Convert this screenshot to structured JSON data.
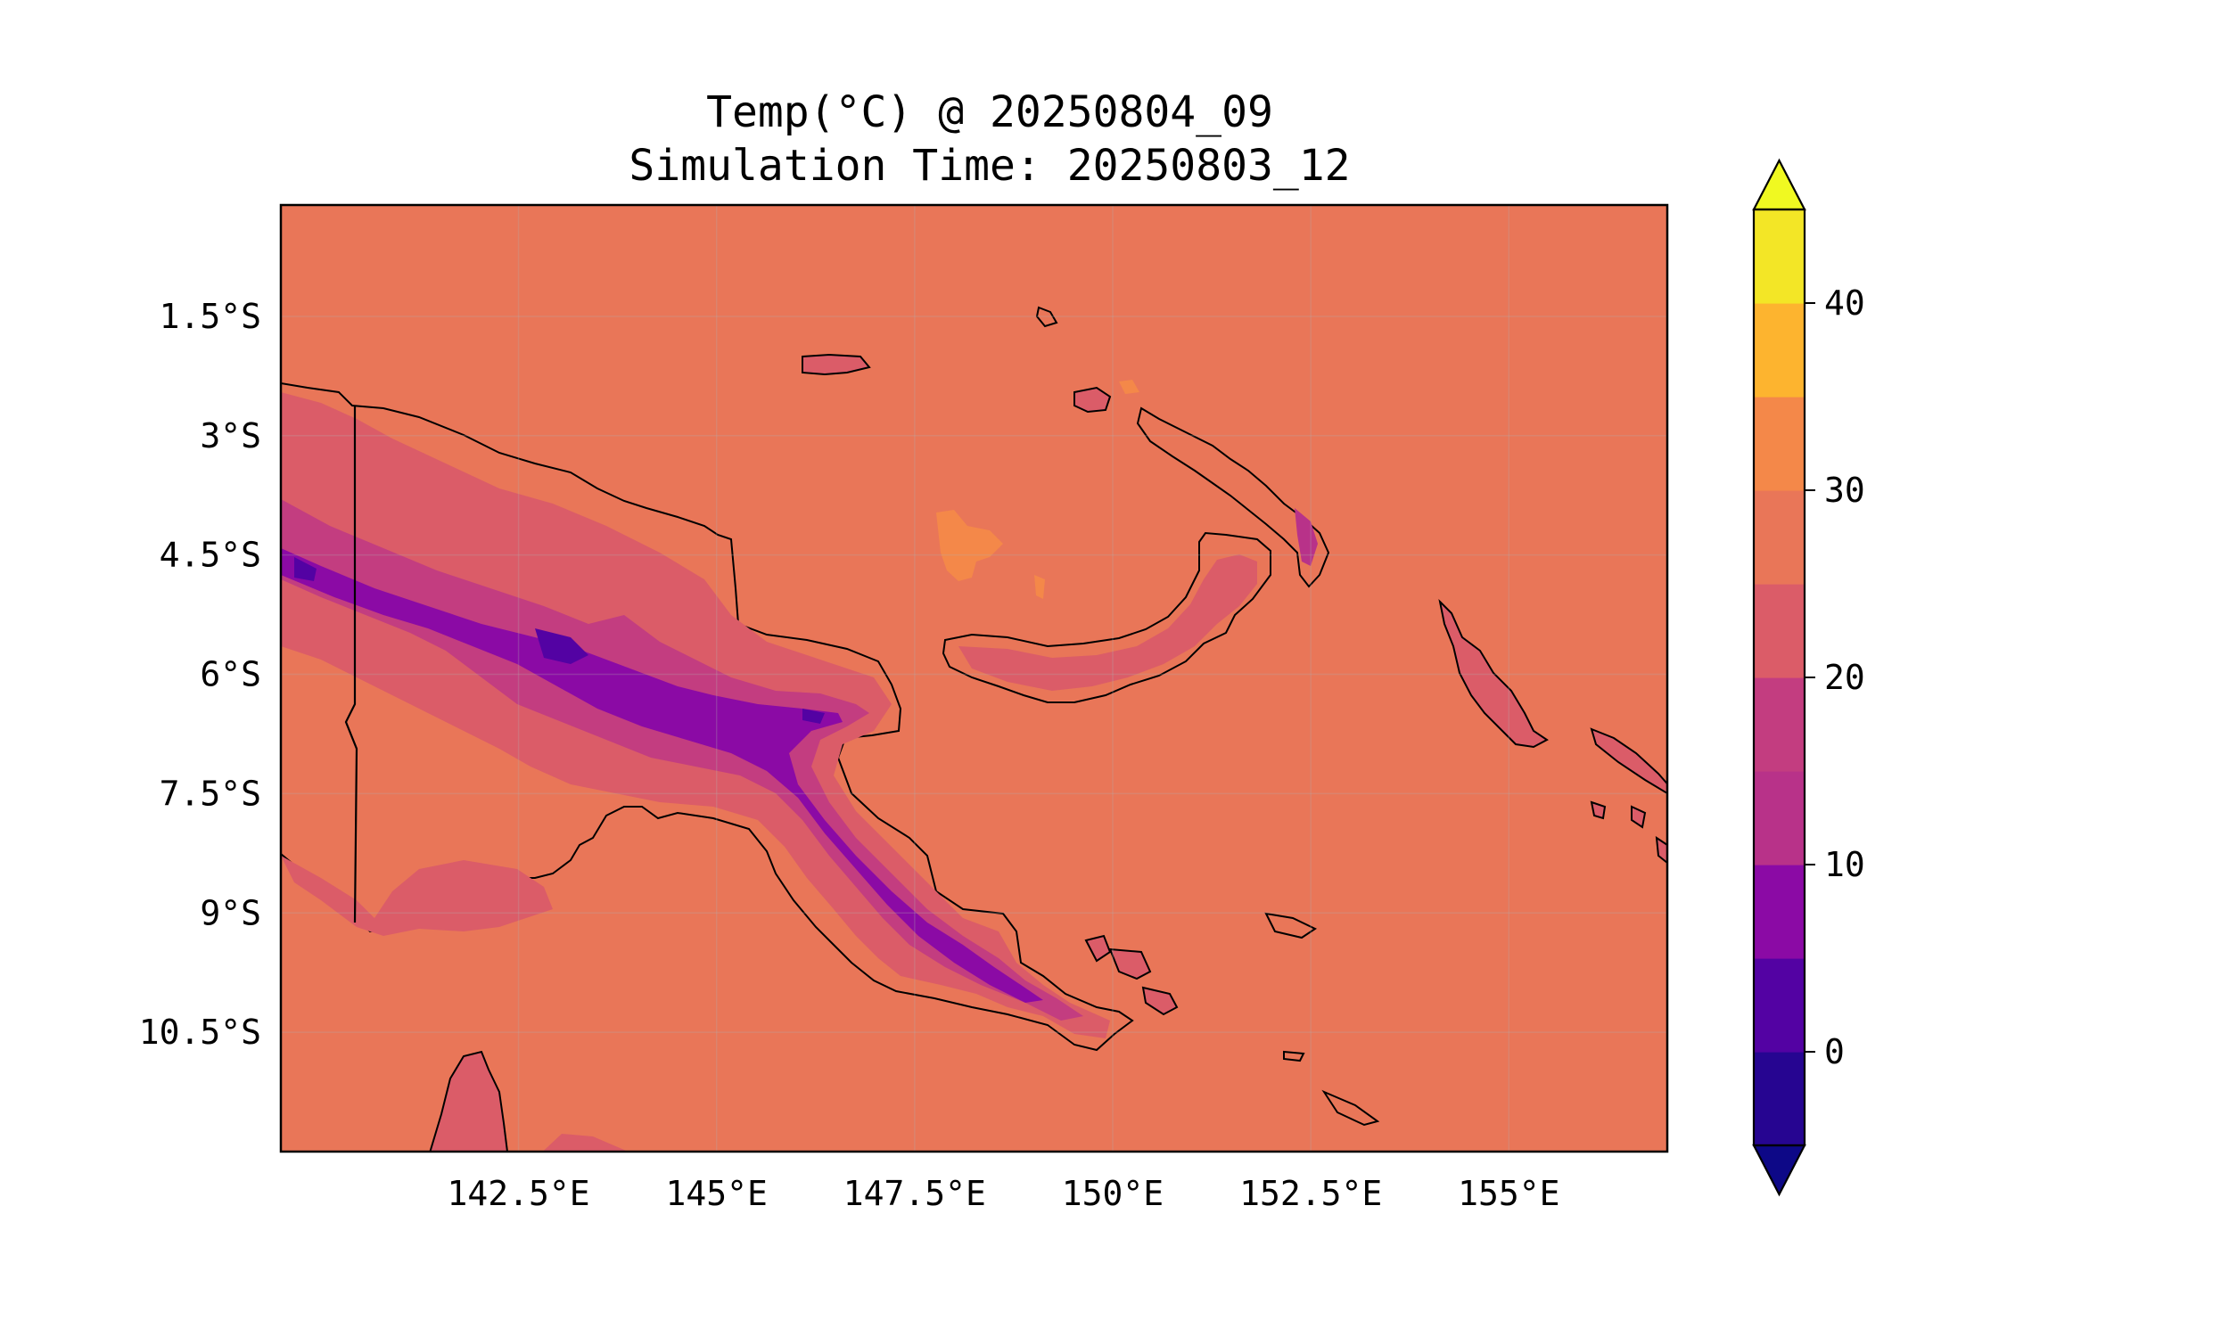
{
  "map": {
    "title_line1": "Temp(°C) @ 20250804_09",
    "title_line2": "Simulation Time: 20250803_12",
    "lon_ticks": [
      "142.5°E",
      "145°E",
      "147.5°E",
      "150°E",
      "152.5°E",
      "155°E"
    ],
    "lat_ticks": [
      "1.5°S",
      "3°S",
      "4.5°S",
      "6°S",
      "7.5°S",
      "9°S",
      "10.5°S"
    ],
    "extent": {
      "lon_min": 139.5,
      "lon_max": 157.0,
      "lat_min": -12.0,
      "lat_max": -0.1
    },
    "ocean_color": "#e97658",
    "coastline_color": "#000000",
    "gridlines": true
  },
  "colorbar": {
    "tick_labels": [
      "0",
      "10",
      "20",
      "30",
      "40"
    ],
    "tick_values": [
      0,
      10,
      20,
      30,
      40
    ],
    "levels": [
      -5,
      0,
      5,
      10,
      15,
      20,
      25,
      30,
      35,
      40,
      45
    ],
    "colors": [
      "#260591",
      "#5302a3",
      "#8b0aa5",
      "#b83289",
      "#c33d80",
      "#db5c68",
      "#e97658",
      "#f48849",
      "#fdb42f",
      "#f3e626"
    ],
    "under_color": "#0d0887",
    "over_color": "#f0f921",
    "extend": "both",
    "colormap": "plasma"
  }
}
